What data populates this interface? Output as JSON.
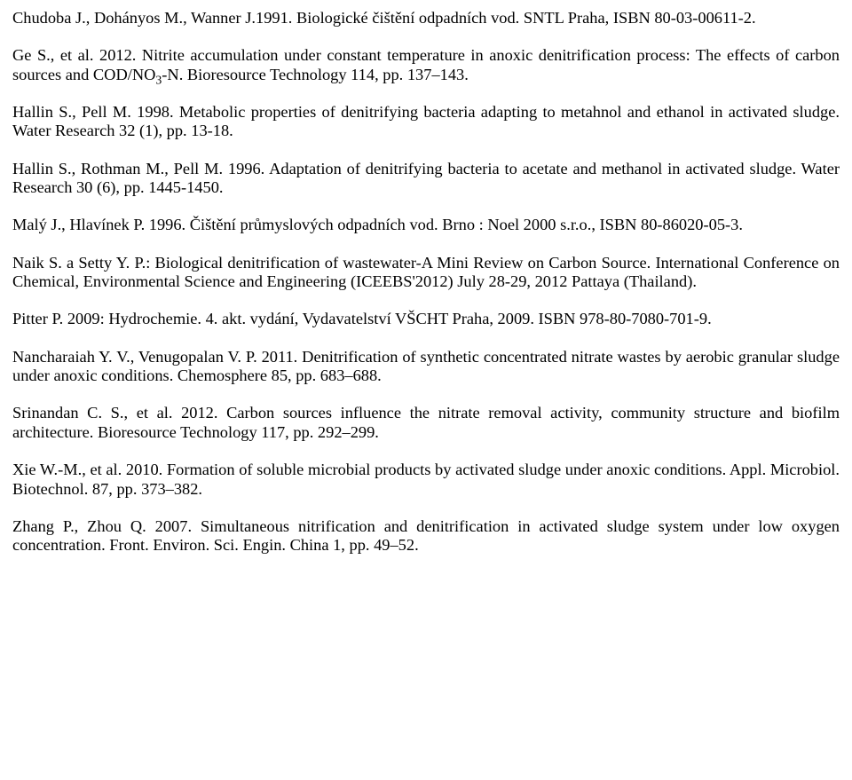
{
  "refs": [
    {
      "text": "Chudoba J., Dohányos M., Wanner J.1991. Biologické čištění odpadních vod. SNTL Praha, ISBN 80-03-00611-2."
    },
    {
      "pre": "Ge S., et al. 2012. Nitrite accumulation under constant temperature in anoxic denitrification process: The effects of carbon sources and COD/NO",
      "sub": "3",
      "post": "-N. Bioresource Technology 114, pp. 137–143."
    },
    {
      "text": "Hallin S., Pell M. 1998. Metabolic properties of denitrifying bacteria adapting to metahnol and ethanol in activated sludge. Water Research 32 (1), pp. 13-18."
    },
    {
      "text": "Hallin S., Rothman M., Pell M. 1996. Adaptation of denitrifying bacteria to acetate and methanol in activated sludge. Water Research 30 (6), pp. 1445-1450."
    },
    {
      "text": "Malý J., Hlavínek P. 1996. Čištění průmyslových odpadních vod. Brno : Noel 2000 s.r.o., ISBN 80-86020-05-3."
    },
    {
      "text": "Naik S. a Setty Y. P.: Biological denitrification of wastewater-A Mini Review on Carbon Source. International Conference on Chemical, Environmental Science and Engineering (ICEEBS'2012) July 28-29, 2012 Pattaya (Thailand)."
    },
    {
      "text": "Pitter P. 2009: Hydrochemie. 4. akt. vydání, Vydavatelství VŠCHT Praha, 2009. ISBN 978-80-7080-701-9."
    },
    {
      "text": "Nancharaiah Y. V., Venugopalan V. P. 2011. Denitrification of synthetic concentrated nitrate wastes by aerobic granular sludge under anoxic conditions. Chemosphere 85, pp. 683–688."
    },
    {
      "text": "Srinandan C. S., et al. 2012. Carbon sources influence the nitrate removal activity, community structure and biofilm architecture. Bioresource Technology 117, pp. 292–299."
    },
    {
      "text": "Xie W.-M., et al. 2010. Formation of soluble microbial products by activated sludge under anoxic conditions. Appl. Microbiol. Biotechnol. 87, pp. 373–382."
    },
    {
      "text": "Zhang P., Zhou Q. 2007. Simultaneous nitrification and denitrification in activated sludge system under low oxygen concentration. Front. Environ. Sci. Engin. China 1, pp. 49–52."
    }
  ]
}
